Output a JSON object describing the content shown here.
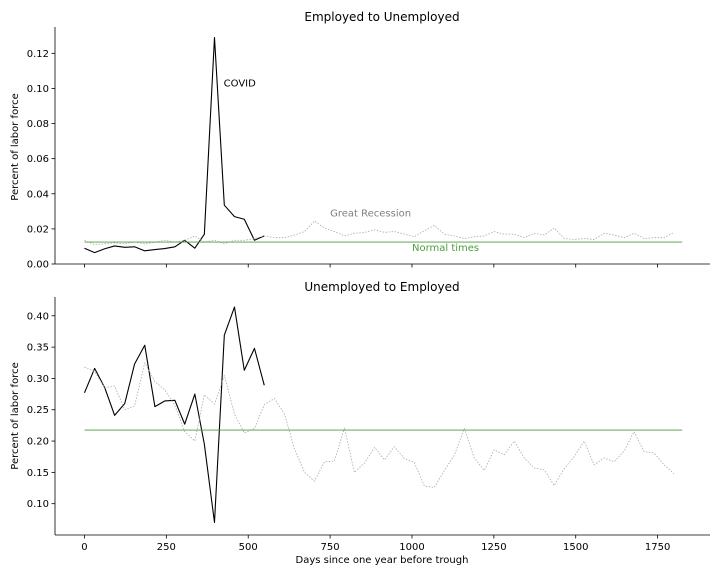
{
  "chart_data": [
    {
      "type": "line",
      "title": "Employed to Unemployed",
      "xlabel": "",
      "ylabel": "Percent of labor force",
      "xlim": [
        -90,
        1910
      ],
      "ylim": [
        0,
        0.135
      ],
      "x_ticks": [
        0,
        250,
        500,
        750,
        1000,
        1250,
        1500,
        1750
      ],
      "x_tick_labels_shown": false,
      "y_ticks": [
        0.0,
        0.02,
        0.04,
        0.06,
        0.08,
        0.1,
        0.12
      ],
      "y_tick_labels": [
        "0.00",
        "0.02",
        "0.04",
        "0.06",
        "0.08",
        "0.10",
        "0.12"
      ],
      "grid": false,
      "legend": "none",
      "colors": {
        "covid": "#000000",
        "recession": "#aaaaaa",
        "normal": "#4a9e3a",
        "recession_label": "#808080"
      },
      "series": [
        {
          "name": "COVID",
          "style": "solid",
          "points": [
            [
              0,
              0.009
            ],
            [
              31,
              0.0065
            ],
            [
              62,
              0.0087
            ],
            [
              92,
              0.0103
            ],
            [
              123,
              0.0095
            ],
            [
              153,
              0.0098
            ],
            [
              184,
              0.0075
            ],
            [
              215,
              0.0082
            ],
            [
              245,
              0.0088
            ],
            [
              276,
              0.0098
            ],
            [
              306,
              0.0135
            ],
            [
              337,
              0.009
            ],
            [
              366,
              0.017
            ],
            [
              397,
              0.129
            ],
            [
              427,
              0.0335
            ],
            [
              458,
              0.027
            ],
            [
              488,
              0.0255
            ],
            [
              519,
              0.0135
            ],
            [
              549,
              0.016
            ]
          ]
        },
        {
          "name": "Great Recession",
          "style": "dotted",
          "points": [
            [
              0,
              0.0135
            ],
            [
              31,
              0.011
            ],
            [
              62,
              0.0115
            ],
            [
              92,
              0.012
            ],
            [
              123,
              0.0115
            ],
            [
              153,
              0.0125
            ],
            [
              184,
              0.0115
            ],
            [
              215,
              0.0125
            ],
            [
              245,
              0.0135
            ],
            [
              276,
              0.0125
            ],
            [
              306,
              0.0135
            ],
            [
              337,
              0.016
            ],
            [
              366,
              0.0125
            ],
            [
              397,
              0.0135
            ],
            [
              427,
              0.0115
            ],
            [
              458,
              0.0135
            ],
            [
              488,
              0.0135
            ],
            [
              519,
              0.0145
            ],
            [
              549,
              0.016
            ],
            [
              580,
              0.015
            ],
            [
              611,
              0.015
            ],
            [
              641,
              0.0165
            ],
            [
              672,
              0.0185
            ],
            [
              702,
              0.0245
            ],
            [
              733,
              0.0205
            ],
            [
              763,
              0.0185
            ],
            [
              794,
              0.016
            ],
            [
              824,
              0.0175
            ],
            [
              855,
              0.018
            ],
            [
              886,
              0.0195
            ],
            [
              916,
              0.018
            ],
            [
              946,
              0.0185
            ],
            [
              977,
              0.017
            ],
            [
              1007,
              0.0155
            ],
            [
              1038,
              0.019
            ],
            [
              1068,
              0.022
            ],
            [
              1099,
              0.017
            ],
            [
              1129,
              0.016
            ],
            [
              1160,
              0.0145
            ],
            [
              1190,
              0.0155
            ],
            [
              1221,
              0.016
            ],
            [
              1251,
              0.0185
            ],
            [
              1282,
              0.017
            ],
            [
              1312,
              0.017
            ],
            [
              1343,
              0.015
            ],
            [
              1373,
              0.0175
            ],
            [
              1404,
              0.0165
            ],
            [
              1434,
              0.0205
            ],
            [
              1465,
              0.0145
            ],
            [
              1495,
              0.014
            ],
            [
              1526,
              0.0145
            ],
            [
              1556,
              0.014
            ],
            [
              1587,
              0.0175
            ],
            [
              1617,
              0.0165
            ],
            [
              1648,
              0.015
            ],
            [
              1678,
              0.0175
            ],
            [
              1709,
              0.0145
            ],
            [
              1739,
              0.015
            ],
            [
              1770,
              0.015
            ],
            [
              1800,
              0.018
            ]
          ]
        },
        {
          "name": "Normal times",
          "style": "solid",
          "points": [
            [
              0,
              0.0125
            ],
            [
              1825,
              0.0125
            ]
          ]
        }
      ],
      "annotations": [
        {
          "text": "COVID",
          "x": 425,
          "y": 0.101,
          "series": "covid"
        },
        {
          "text": "Great Recession",
          "x": 750,
          "y": 0.027,
          "series": "recession"
        },
        {
          "text": "Normal times",
          "x": 1000,
          "y": 0.0075,
          "series": "normal"
        }
      ]
    },
    {
      "type": "line",
      "title": "Unemployed to Employed",
      "xlabel": "Days since one year before trough",
      "ylabel": "Percent of labor force",
      "xlim": [
        -90,
        1910
      ],
      "ylim": [
        0.05,
        0.43
      ],
      "x_ticks": [
        0,
        250,
        500,
        750,
        1000,
        1250,
        1500,
        1750
      ],
      "x_tick_labels": [
        "0",
        "250",
        "500",
        "750",
        "1000",
        "1250",
        "1500",
        "1750"
      ],
      "y_ticks": [
        0.1,
        0.15,
        0.2,
        0.25,
        0.3,
        0.35,
        0.4
      ],
      "y_tick_labels": [
        "0.10",
        "0.15",
        "0.20",
        "0.25",
        "0.30",
        "0.35",
        "0.40"
      ],
      "grid": false,
      "legend": "none",
      "colors": {
        "covid": "#000000",
        "recession": "#aaaaaa",
        "normal": "#4a9e3a"
      },
      "series": [
        {
          "name": "COVID",
          "style": "solid",
          "points": [
            [
              0,
              0.277
            ],
            [
              31,
              0.316
            ],
            [
              62,
              0.285
            ],
            [
              92,
              0.241
            ],
            [
              123,
              0.26
            ],
            [
              153,
              0.323
            ],
            [
              184,
              0.353
            ],
            [
              215,
              0.255
            ],
            [
              245,
              0.264
            ],
            [
              276,
              0.265
            ],
            [
              306,
              0.227
            ],
            [
              337,
              0.275
            ],
            [
              366,
              0.195
            ],
            [
              397,
              0.07
            ],
            [
              427,
              0.369
            ],
            [
              458,
              0.414
            ],
            [
              488,
              0.313
            ],
            [
              519,
              0.348
            ],
            [
              549,
              0.289
            ]
          ]
        },
        {
          "name": "Great Recession",
          "style": "dotted",
          "points": [
            [
              0,
              0.318
            ],
            [
              31,
              0.311
            ],
            [
              62,
              0.285
            ],
            [
              92,
              0.288
            ],
            [
              123,
              0.25
            ],
            [
              153,
              0.256
            ],
            [
              184,
              0.325
            ],
            [
              215,
              0.295
            ],
            [
              245,
              0.282
            ],
            [
              276,
              0.257
            ],
            [
              306,
              0.215
            ],
            [
              337,
              0.2
            ],
            [
              366,
              0.274
            ],
            [
              397,
              0.259
            ],
            [
              427,
              0.305
            ],
            [
              458,
              0.243
            ],
            [
              488,
              0.213
            ],
            [
              519,
              0.22
            ],
            [
              549,
              0.258
            ],
            [
              580,
              0.268
            ],
            [
              611,
              0.243
            ],
            [
              641,
              0.188
            ],
            [
              672,
              0.15
            ],
            [
              702,
              0.136
            ],
            [
              733,
              0.167
            ],
            [
              763,
              0.168
            ],
            [
              794,
              0.221
            ],
            [
              824,
              0.15
            ],
            [
              855,
              0.165
            ],
            [
              886,
              0.19
            ],
            [
              916,
              0.17
            ],
            [
              946,
              0.191
            ],
            [
              977,
              0.172
            ],
            [
              1007,
              0.166
            ],
            [
              1038,
              0.128
            ],
            [
              1068,
              0.126
            ],
            [
              1099,
              0.153
            ],
            [
              1129,
              0.177
            ],
            [
              1160,
              0.22
            ],
            [
              1190,
              0.173
            ],
            [
              1221,
              0.153
            ],
            [
              1251,
              0.186
            ],
            [
              1282,
              0.178
            ],
            [
              1312,
              0.2
            ],
            [
              1343,
              0.173
            ],
            [
              1373,
              0.157
            ],
            [
              1404,
              0.154
            ],
            [
              1434,
              0.129
            ],
            [
              1465,
              0.156
            ],
            [
              1495,
              0.175
            ],
            [
              1526,
              0.2
            ],
            [
              1556,
              0.162
            ],
            [
              1587,
              0.173
            ],
            [
              1617,
              0.167
            ],
            [
              1648,
              0.184
            ],
            [
              1678,
              0.215
            ],
            [
              1709,
              0.183
            ],
            [
              1739,
              0.181
            ],
            [
              1770,
              0.162
            ],
            [
              1800,
              0.148
            ]
          ]
        },
        {
          "name": "Normal times",
          "style": "solid",
          "points": [
            [
              0,
              0.2175
            ],
            [
              1825,
              0.2175
            ]
          ]
        }
      ]
    }
  ]
}
